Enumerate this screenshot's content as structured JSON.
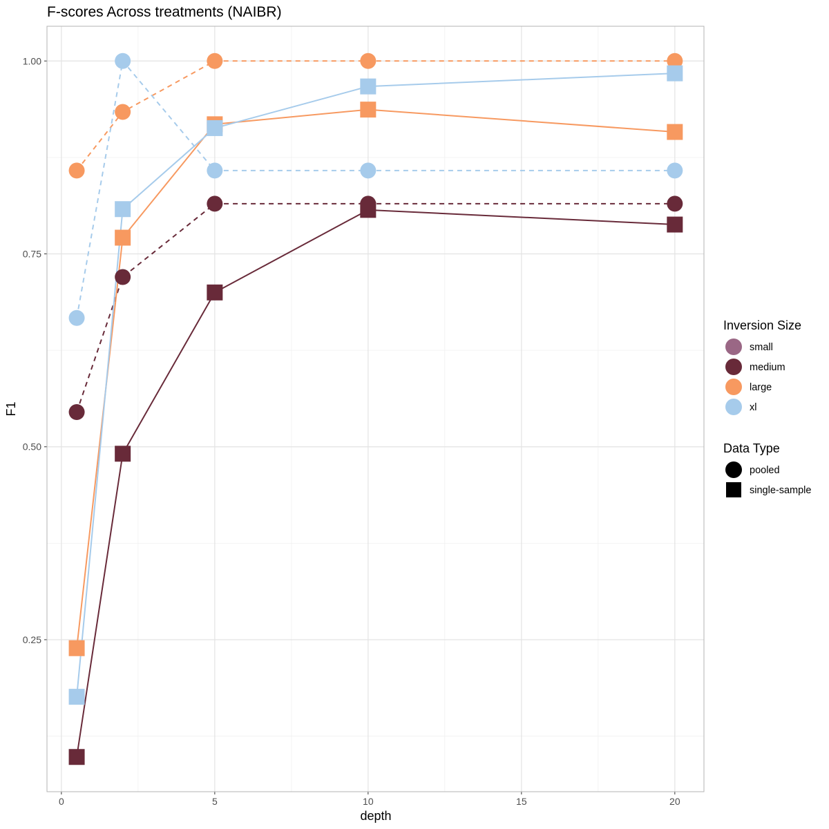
{
  "chart_data": {
    "type": "line",
    "title": "F-scores Across treatments (NAIBR)",
    "xlabel": "depth",
    "ylabel": "F1",
    "xlim": [
      -0.47,
      20.95
    ],
    "ylim": [
      0.053,
      1.045
    ],
    "xticks": [
      0,
      5,
      10,
      15,
      20
    ],
    "xtick_labels": [
      "0",
      "5",
      "10",
      "15",
      "20"
    ],
    "yticks": [
      0.25,
      0.5,
      0.75,
      1.0
    ],
    "ytick_labels": [
      "0.25",
      "0.50",
      "0.75",
      "1.00"
    ],
    "grid": true,
    "legend_placement": "right",
    "x": [
      0.5,
      2,
      5,
      10,
      20
    ],
    "series": [
      {
        "size": "large",
        "type": "pooled",
        "values": [
          0.858,
          0.934,
          1.0,
          1.0,
          1.0
        ]
      },
      {
        "size": "xl",
        "type": "pooled",
        "values": [
          0.667,
          1.0,
          0.858,
          0.858,
          0.858
        ]
      },
      {
        "size": "medium",
        "type": "pooled",
        "values": [
          0.545,
          0.72,
          0.815,
          0.815,
          0.815
        ]
      },
      {
        "size": "large",
        "type": "single-sample",
        "values": [
          0.239,
          0.771,
          0.918,
          0.937,
          0.908
        ]
      },
      {
        "size": "xl",
        "type": "single-sample",
        "values": [
          0.176,
          0.808,
          0.913,
          0.967,
          0.984
        ]
      },
      {
        "size": "medium",
        "type": "single-sample",
        "values": [
          0.098,
          0.491,
          0.7,
          0.807,
          0.788
        ]
      }
    ],
    "legend": {
      "size_title": "Inversion Size",
      "sizes": [
        {
          "label": "small",
          "color": "#9a6785"
        },
        {
          "label": "medium",
          "color": "#682a39"
        },
        {
          "label": "large",
          "color": "#f79960"
        },
        {
          "label": "xl",
          "color": "#a6cbeb"
        }
      ],
      "type_title": "Data Type",
      "types": [
        {
          "label": "pooled",
          "shape": "circle",
          "linetype": "dashed"
        },
        {
          "label": "single-sample",
          "shape": "square",
          "linetype": "solid"
        }
      ]
    }
  }
}
